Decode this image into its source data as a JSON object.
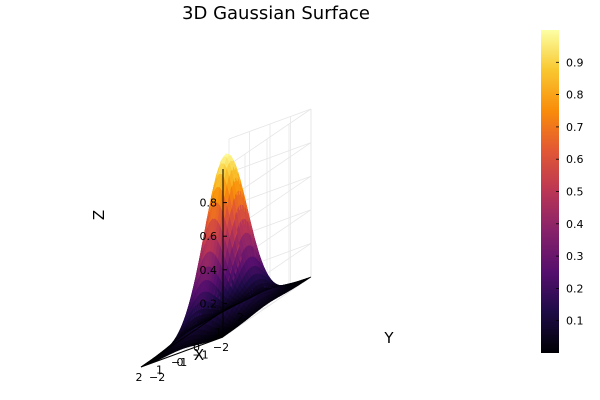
{
  "chart_data": {
    "type": "surface",
    "title": "3D Gaussian Surface",
    "xlabel": "X",
    "ylabel": "Y",
    "zlabel": "Z",
    "function": "z = exp(-(x^2 + y^2))",
    "x_range": [
      -2,
      2
    ],
    "y_range": [
      -2,
      2
    ],
    "zlim": [
      0,
      1
    ],
    "x_ticks": [
      "−2",
      "−1",
      "0",
      "1",
      "2"
    ],
    "y_ticks": [
      "−2",
      "−1",
      "0",
      "1",
      "2"
    ],
    "z_ticks": [
      "0.2",
      "0.4",
      "0.6",
      "0.8"
    ],
    "z_tick_values": [
      0.2,
      0.4,
      0.6,
      0.8
    ],
    "colorbar": {
      "colormap": "inferno",
      "range": [
        0,
        1
      ],
      "ticks": [
        "0.1",
        "0.2",
        "0.3",
        "0.4",
        "0.5",
        "0.6",
        "0.7",
        "0.8",
        "0.9"
      ],
      "tick_values": [
        0.1,
        0.2,
        0.3,
        0.4,
        0.5,
        0.6,
        0.7,
        0.8,
        0.9
      ]
    },
    "grid": true,
    "peak": {
      "x": 0,
      "y": 0,
      "z": 1.0
    }
  }
}
